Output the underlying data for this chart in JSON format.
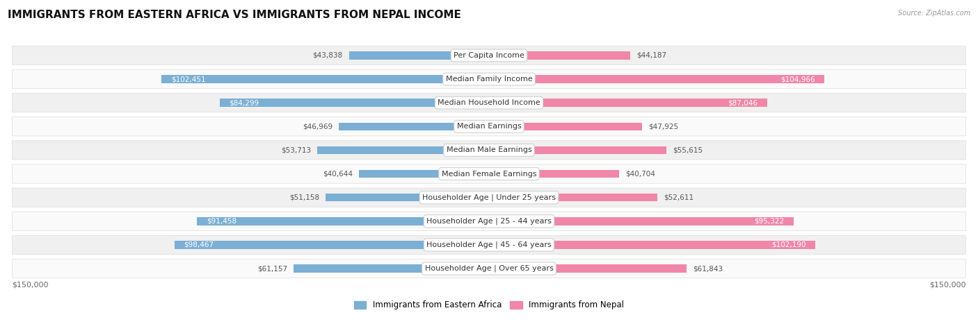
{
  "title": "IMMIGRANTS FROM EASTERN AFRICA VS IMMIGRANTS FROM NEPAL INCOME",
  "source": "Source: ZipAtlas.com",
  "categories": [
    "Per Capita Income",
    "Median Family Income",
    "Median Household Income",
    "Median Earnings",
    "Median Male Earnings",
    "Median Female Earnings",
    "Householder Age | Under 25 years",
    "Householder Age | 25 - 44 years",
    "Householder Age | 45 - 64 years",
    "Householder Age | Over 65 years"
  ],
  "eastern_africa": [
    43838,
    102451,
    84299,
    46969,
    53713,
    40644,
    51158,
    91458,
    98467,
    61157
  ],
  "nepal": [
    44187,
    104966,
    87046,
    47925,
    55615,
    40704,
    52611,
    95322,
    102190,
    61843
  ],
  "max_val": 150000,
  "color_africa": "#7bafd4",
  "color_nepal": "#f087a8",
  "bg_row_odd": "#f0f0f0",
  "bg_row_even": "#fafafa",
  "legend_africa": "Immigrants from Eastern Africa",
  "legend_nepal": "Immigrants from Nepal",
  "title_fontsize": 11,
  "label_fontsize": 8.0,
  "value_fontsize": 7.5,
  "inside_text_threshold": 65000
}
